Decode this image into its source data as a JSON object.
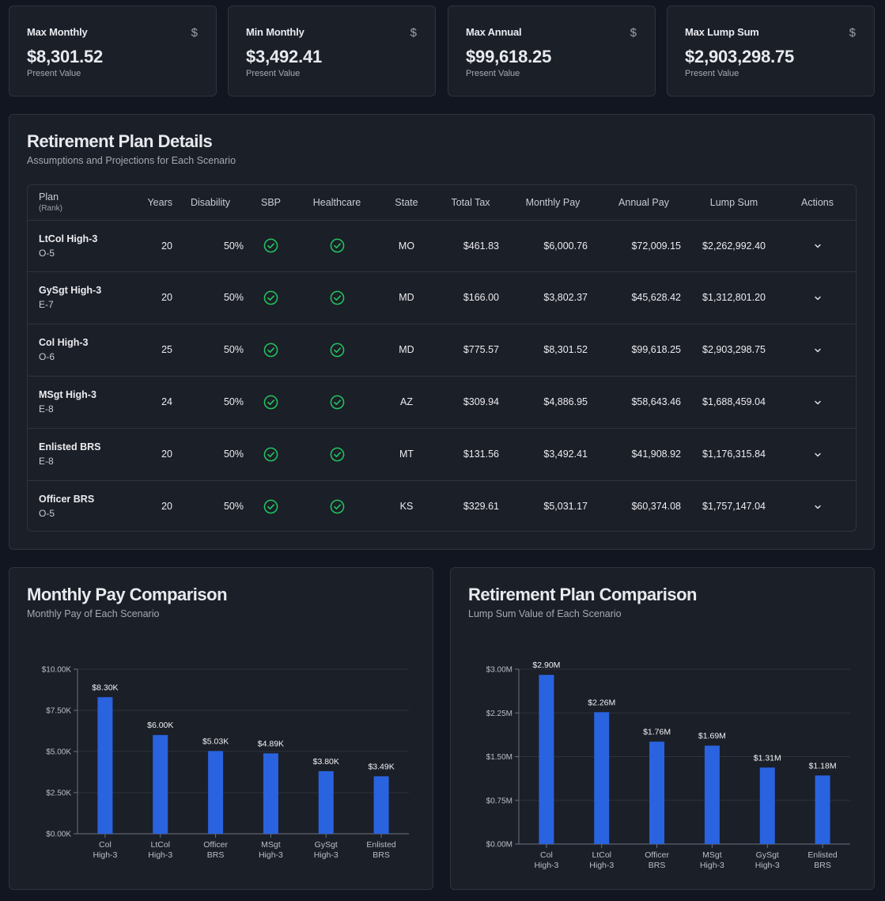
{
  "stats": [
    {
      "title": "Max Monthly",
      "value": "$8,301.52",
      "sub": "Present Value",
      "icon": "$"
    },
    {
      "title": "Min Monthly",
      "value": "$3,492.41",
      "sub": "Present Value",
      "icon": "$"
    },
    {
      "title": "Max Annual",
      "value": "$99,618.25",
      "sub": "Present Value",
      "icon": "$"
    },
    {
      "title": "Max Lump Sum",
      "value": "$2,903,298.75",
      "sub": "Present Value",
      "icon": "$"
    }
  ],
  "details": {
    "title": "Retirement Plan Details",
    "subtitle": "Assumptions and Projections for Each Scenario",
    "columns": {
      "plan": "Plan",
      "rank": "(Rank)",
      "years": "Years",
      "disability": "Disability",
      "sbp": "SBP",
      "healthcare": "Healthcare",
      "state": "State",
      "total_tax": "Total Tax",
      "monthly_pay": "Monthly Pay",
      "annual_pay": "Annual Pay",
      "lump_sum": "Lump Sum",
      "actions": "Actions"
    },
    "rows": [
      {
        "plan": "LtCol High-3",
        "rank": "O-5",
        "years": "20",
        "disability": "50%",
        "state": "MO",
        "total_tax": "$461.83",
        "monthly_pay": "$6,000.76",
        "annual_pay": "$72,009.15",
        "lump_sum": "$2,262,992.40"
      },
      {
        "plan": "GySgt High-3",
        "rank": "E-7",
        "years": "20",
        "disability": "50%",
        "state": "MD",
        "total_tax": "$166.00",
        "monthly_pay": "$3,802.37",
        "annual_pay": "$45,628.42",
        "lump_sum": "$1,312,801.20"
      },
      {
        "plan": "Col High-3",
        "rank": "O-6",
        "years": "25",
        "disability": "50%",
        "state": "MD",
        "total_tax": "$775.57",
        "monthly_pay": "$8,301.52",
        "annual_pay": "$99,618.25",
        "lump_sum": "$2,903,298.75"
      },
      {
        "plan": "MSgt High-3",
        "rank": "E-8",
        "years": "24",
        "disability": "50%",
        "state": "AZ",
        "total_tax": "$309.94",
        "monthly_pay": "$4,886.95",
        "annual_pay": "$58,643.46",
        "lump_sum": "$1,688,459.04"
      },
      {
        "plan": "Enlisted BRS",
        "rank": "E-8",
        "years": "20",
        "disability": "50%",
        "state": "MT",
        "total_tax": "$131.56",
        "monthly_pay": "$3,492.41",
        "annual_pay": "$41,908.92",
        "lump_sum": "$1,176,315.84"
      },
      {
        "plan": "Officer BRS",
        "rank": "O-5",
        "years": "20",
        "disability": "50%",
        "state": "KS",
        "total_tax": "$329.61",
        "monthly_pay": "$5,031.17",
        "annual_pay": "$60,374.08",
        "lump_sum": "$1,757,147.04"
      }
    ]
  },
  "colors": {
    "accent": "#2a63df",
    "check": "#22c55e"
  },
  "chart_data": [
    {
      "type": "bar",
      "title": "Monthly Pay Comparison",
      "subtitle": "Monthly Pay of Each Scenario",
      "categories": [
        [
          "Col",
          "High-3"
        ],
        [
          "LtCol",
          "High-3"
        ],
        [
          "Officer",
          "BRS"
        ],
        [
          "MSgt",
          "High-3"
        ],
        [
          "GySgt",
          "High-3"
        ],
        [
          "Enlisted",
          "BRS"
        ]
      ],
      "values": [
        8301.52,
        6000.76,
        5031.17,
        4886.95,
        3802.37,
        3492.41
      ],
      "data_labels": [
        "$8.30K",
        "$6.00K",
        "$5.03K",
        "$4.89K",
        "$3.80K",
        "$3.49K"
      ],
      "yticks": [
        0,
        2500,
        5000,
        7500,
        10000
      ],
      "ytick_labels": [
        "$0.00K",
        "$2.50K",
        "$5.00K",
        "$7.50K",
        "$10.00K"
      ],
      "ylim": [
        0,
        10000
      ],
      "grid": true,
      "color": "#2a63df"
    },
    {
      "type": "bar",
      "title": "Retirement Plan Comparison",
      "subtitle": "Lump Sum Value of Each Scenario",
      "categories": [
        [
          "Col",
          "High-3"
        ],
        [
          "LtCol",
          "High-3"
        ],
        [
          "Officer",
          "BRS"
        ],
        [
          "MSgt",
          "High-3"
        ],
        [
          "GySgt",
          "High-3"
        ],
        [
          "Enlisted",
          "BRS"
        ]
      ],
      "values": [
        2903298.75,
        2262992.4,
        1757147.04,
        1688459.04,
        1312801.2,
        1176315.84
      ],
      "data_labels": [
        "$2.90M",
        "$2.26M",
        "$1.76M",
        "$1.69M",
        "$1.31M",
        "$1.18M"
      ],
      "yticks": [
        0,
        750000,
        1500000,
        2250000,
        3000000
      ],
      "ytick_labels": [
        "$0.00M",
        "$0.75M",
        "$1.50M",
        "$2.25M",
        "$3.00M"
      ],
      "ylim": [
        0,
        3000000
      ],
      "grid": true,
      "color": "#2a63df"
    }
  ]
}
